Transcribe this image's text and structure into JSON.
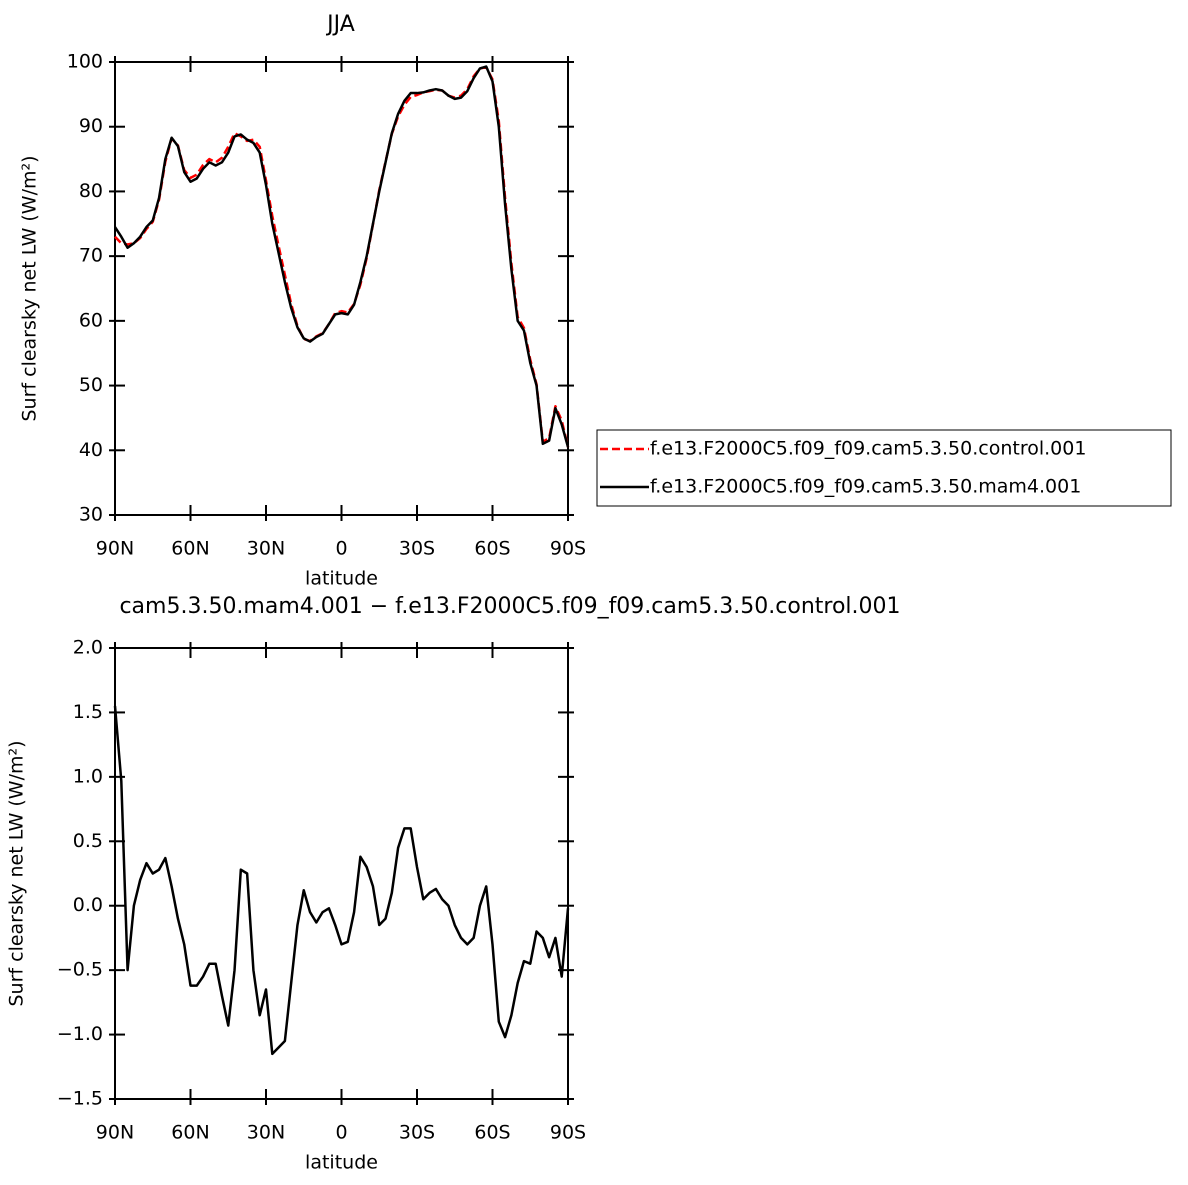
{
  "chart_data": [
    {
      "type": "line",
      "title": "JJA",
      "xlabel": "latitude",
      "ylabel": "Surf clearsky net LW (W/m²)",
      "legend": "right",
      "x": [
        90,
        87.5,
        85,
        82.5,
        80,
        77.5,
        75,
        72.5,
        70,
        67.5,
        65,
        62.5,
        60,
        57.5,
        55,
        52.5,
        50,
        47.5,
        45,
        42.5,
        40,
        37.5,
        35,
        32.5,
        30,
        27.5,
        25,
        22.5,
        20,
        17.5,
        15,
        12.5,
        10,
        7.5,
        5,
        2.5,
        0,
        -2.5,
        -5,
        -7.5,
        -10,
        -12.5,
        -15,
        -17.5,
        -20,
        -22.5,
        -25,
        -27.5,
        -30,
        -32.5,
        -35,
        -37.5,
        -40,
        -42.5,
        -45,
        -47.5,
        -50,
        -52.5,
        -55,
        -57.5,
        -60,
        -62.5,
        -65,
        -67.5,
        -70,
        -72.5,
        -75,
        -77.5,
        -80,
        -82.5,
        -85,
        -87.5,
        -90
      ],
      "series": [
        {
          "name": "f.e13.F2000C5.f09_f09.cam5.3.50.control.001",
          "color": "#ff0000",
          "line_style": "dashed",
          "values": [
            73.0,
            72,
            71.8,
            72,
            72.8,
            74.2,
            75.3,
            78.7,
            84.6,
            88.2,
            87.1,
            83.3,
            82.1,
            82.6,
            84.1,
            85.0,
            84.5,
            85.2,
            86.9,
            89.0,
            88.5,
            87.8,
            88.0,
            86.9,
            81.7,
            76.2,
            71.6,
            67.1,
            62.6,
            59.2,
            57.2,
            56.9,
            57.6,
            58.1,
            59.5,
            61.2,
            61.5,
            61.3,
            62.6,
            65.6,
            69.7,
            74.9,
            80.2,
            84.6,
            88.9,
            91.6,
            93.4,
            94.6,
            94.9,
            95.3,
            95.5,
            95.7,
            95.6,
            94.8,
            94.5,
            94.8,
            95.8,
            97.8,
            99.0,
            99.2,
            97.3,
            90.9,
            79.0,
            68.9,
            60.6,
            58.9,
            54.0,
            50.2,
            41.3,
            41.9,
            46.8,
            44.6,
            40.5
          ]
        },
        {
          "name": "f.e13.F2000C5.f09_f09.cam5.3.50.mam4.001",
          "color": "#000000",
          "line_style": "solid",
          "values": [
            74.5,
            73,
            71.3,
            72,
            73,
            74.5,
            75.5,
            79,
            85,
            88.3,
            87,
            83,
            81.5,
            82,
            83.5,
            84.5,
            84,
            84.5,
            86,
            88.5,
            88.8,
            88,
            87.5,
            86,
            81,
            75,
            70.5,
            66,
            62,
            59,
            57.3,
            56.8,
            57.5,
            58,
            59.5,
            61,
            61.2,
            61,
            62.5,
            66,
            70,
            75,
            80,
            84.5,
            89,
            92,
            94,
            95.2,
            95.2,
            95.3,
            95.6,
            95.8,
            95.6,
            94.8,
            94.3,
            94.5,
            95.5,
            97.5,
            99,
            99.3,
            97,
            90,
            78,
            68,
            60,
            58.5,
            53.5,
            50,
            41,
            41.5,
            46.5,
            44,
            40.5
          ]
        }
      ],
      "xlim": [
        90,
        -90
      ],
      "xticks": [
        {
          "value": 90,
          "label": "90N"
        },
        {
          "value": 60,
          "label": "60N"
        },
        {
          "value": 30,
          "label": "30N"
        },
        0,
        {
          "value": -30,
          "label": "30S"
        },
        {
          "value": -60,
          "label": "60S"
        },
        {
          "value": -90,
          "label": "90S"
        }
      ],
      "ylim": [
        30,
        100
      ],
      "yticks": [
        30,
        40,
        50,
        60,
        70,
        80,
        90,
        100
      ]
    },
    {
      "type": "line",
      "title": "cam5.3.50.mam4.001 − f.e13.F2000C5.f09_f09.cam5.3.50.control.001",
      "xlabel": "latitude",
      "ylabel": "Surf clearsky net LW (W/m²)",
      "x": [
        90,
        87.5,
        85,
        82.5,
        80,
        77.5,
        75,
        72.5,
        70,
        67.5,
        65,
        62.5,
        60,
        57.5,
        55,
        52.5,
        50,
        47.5,
        45,
        42.5,
        40,
        37.5,
        35,
        32.5,
        30,
        27.5,
        25,
        22.5,
        20,
        17.5,
        15,
        12.5,
        10,
        7.5,
        5,
        2.5,
        0,
        -2.5,
        -5,
        -7.5,
        -10,
        -12.5,
        -15,
        -17.5,
        -20,
        -22.5,
        -25,
        -27.5,
        -30,
        -32.5,
        -35,
        -37.5,
        -40,
        -42.5,
        -45,
        -47.5,
        -50,
        -52.5,
        -55,
        -57.5,
        -60,
        -62.5,
        -65,
        -67.5,
        -70,
        -72.5,
        -75,
        -77.5,
        -80,
        -82.5,
        -85,
        -87.5,
        -90
      ],
      "color": "#000000",
      "values": [
        1.55,
        0.97,
        -0.5,
        0.0,
        0.2,
        0.33,
        0.25,
        0.28,
        0.37,
        0.15,
        -0.1,
        -0.3,
        -0.62,
        -0.62,
        -0.55,
        -0.45,
        -0.45,
        -0.7,
        -0.93,
        -0.5,
        0.28,
        0.25,
        -0.5,
        -0.85,
        -0.65,
        -1.15,
        -1.1,
        -1.05,
        -0.6,
        -0.15,
        0.12,
        -0.05,
        -0.13,
        -0.05,
        -0.02,
        -0.15,
        -0.3,
        -0.28,
        -0.05,
        0.38,
        0.3,
        0.15,
        -0.15,
        -0.1,
        0.1,
        0.45,
        0.6,
        0.6,
        0.3,
        0.05,
        0.1,
        0.13,
        0.05,
        0.0,
        -0.15,
        -0.25,
        -0.3,
        -0.25,
        0.0,
        0.15,
        -0.3,
        -0.9,
        -1.02,
        -0.85,
        -0.6,
        -0.43,
        -0.45,
        -0.2,
        -0.25,
        -0.4,
        -0.25,
        -0.55,
        -0.02
      ],
      "xlim": [
        90,
        -90
      ],
      "xticks": [
        {
          "value": 90,
          "label": "90N"
        },
        {
          "value": 60,
          "label": "60N"
        },
        {
          "value": 30,
          "label": "30N"
        },
        0,
        {
          "value": -30,
          "label": "30S"
        },
        {
          "value": -60,
          "label": "60S"
        },
        {
          "value": -90,
          "label": "90S"
        }
      ],
      "ylim": [
        -1.5,
        2.0
      ],
      "yticks": [
        {
          "value": -1.5,
          "label": "−1.5"
        },
        {
          "value": -1,
          "label": "−1.0"
        },
        {
          "value": -0.5,
          "label": "−0.5"
        },
        {
          "value": 0,
          "label": "0.0"
        },
        0.5,
        {
          "value": 1,
          "label": "1.0"
        },
        1.5,
        {
          "value": 2,
          "label": "2.0"
        }
      ]
    }
  ]
}
